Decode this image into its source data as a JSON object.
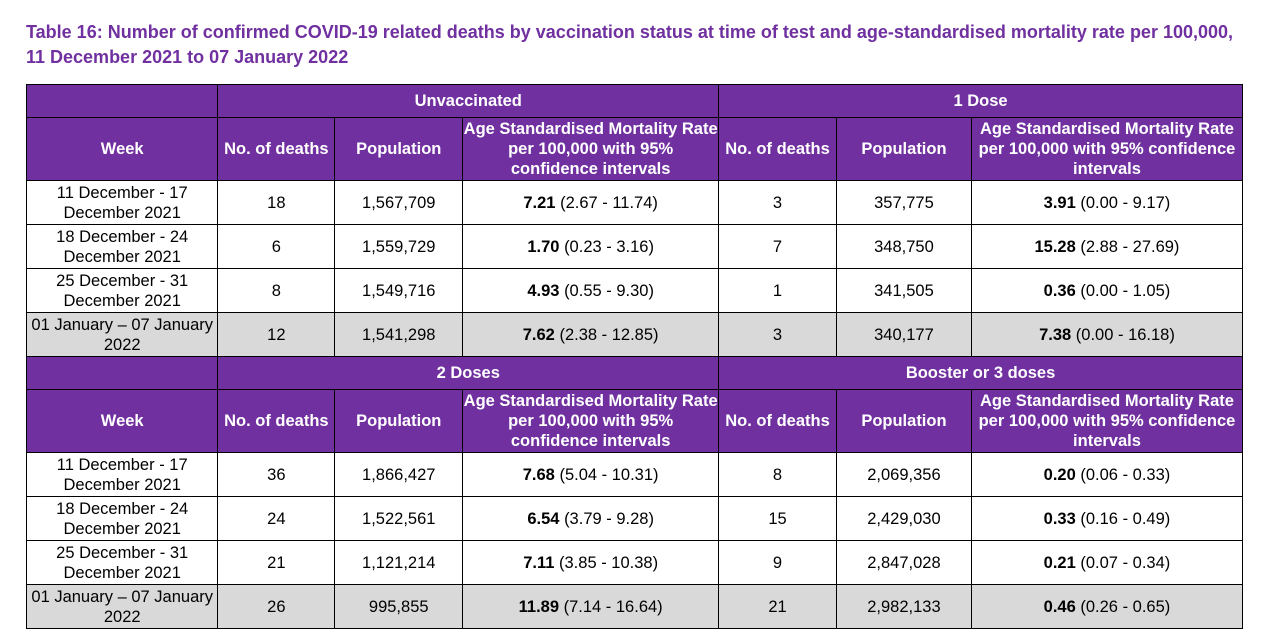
{
  "title": "Table 16: Number of confirmed COVID-19 related deaths by vaccination status at time of test and age-standardised mortality rate per 100,000, 11 December 2021 to 07 January 2022",
  "headers": {
    "week": "Week",
    "deaths": "No. of deaths",
    "population": "Population",
    "rate": "Age Standardised Mortality Rate per 100,000 with 95% confidence intervals"
  },
  "colors": {
    "header_bg": "#7030a0",
    "shade": "#d9d9d9",
    "title": "#7030a0"
  },
  "groups": [
    "Unvaccinated",
    "1 Dose",
    "2 Doses",
    "Booster or 3 doses"
  ],
  "sections": [
    {
      "rows": [
        {
          "week": "11 December - 17 December 2021",
          "a_deaths": "18",
          "a_pop": "1,567,709",
          "a_est": "7.21",
          "a_ci": "(2.67 - 11.74)",
          "b_deaths": "3",
          "b_pop": "357,775",
          "b_est": "3.91",
          "b_ci": "(0.00 - 9.17)"
        },
        {
          "week": "18 December - 24 December 2021",
          "a_deaths": "6",
          "a_pop": "1,559,729",
          "a_est": "1.70",
          "a_ci": "(0.23 - 3.16)",
          "b_deaths": "7",
          "b_pop": "348,750",
          "b_est": "15.28",
          "b_ci": "(2.88 - 27.69)"
        },
        {
          "week": "25 December - 31 December 2021",
          "a_deaths": "8",
          "a_pop": "1,549,716",
          "a_est": "4.93",
          "a_ci": "(0.55 - 9.30)",
          "b_deaths": "1",
          "b_pop": "341,505",
          "b_est": "0.36",
          "b_ci": "(0.00 - 1.05)"
        },
        {
          "week": "01 January – 07 January 2022",
          "a_deaths": "12",
          "a_pop": "1,541,298",
          "a_est": "7.62",
          "a_ci": "(2.38 - 12.85)",
          "b_deaths": "3",
          "b_pop": "340,177",
          "b_est": "7.38",
          "b_ci": "(0.00 - 16.18)"
        }
      ]
    },
    {
      "rows": [
        {
          "week": "11 December - 17 December 2021",
          "a_deaths": "36",
          "a_pop": "1,866,427",
          "a_est": "7.68",
          "a_ci": "(5.04 - 10.31)",
          "b_deaths": "8",
          "b_pop": "2,069,356",
          "b_est": "0.20",
          "b_ci": "(0.06 - 0.33)"
        },
        {
          "week": "18 December - 24 December 2021",
          "a_deaths": "24",
          "a_pop": "1,522,561",
          "a_est": "6.54",
          "a_ci": "(3.79 - 9.28)",
          "b_deaths": "15",
          "b_pop": "2,429,030",
          "b_est": "0.33",
          "b_ci": "(0.16 - 0.49)"
        },
        {
          "week": "25 December - 31 December 2021",
          "a_deaths": "21",
          "a_pop": "1,121,214",
          "a_est": "7.11",
          "a_ci": "(3.85 - 10.38)",
          "b_deaths": "9",
          "b_pop": "2,847,028",
          "b_est": "0.21",
          "b_ci": "(0.07 - 0.34)"
        },
        {
          "week": "01 January – 07 January 2022",
          "a_deaths": "26",
          "a_pop": "995,855",
          "a_est": "11.89",
          "a_ci": "(7.14 - 16.64)",
          "b_deaths": "21",
          "b_pop": "2,982,133",
          "b_est": "0.46",
          "b_ci": "(0.26 - 0.65)"
        }
      ]
    }
  ]
}
